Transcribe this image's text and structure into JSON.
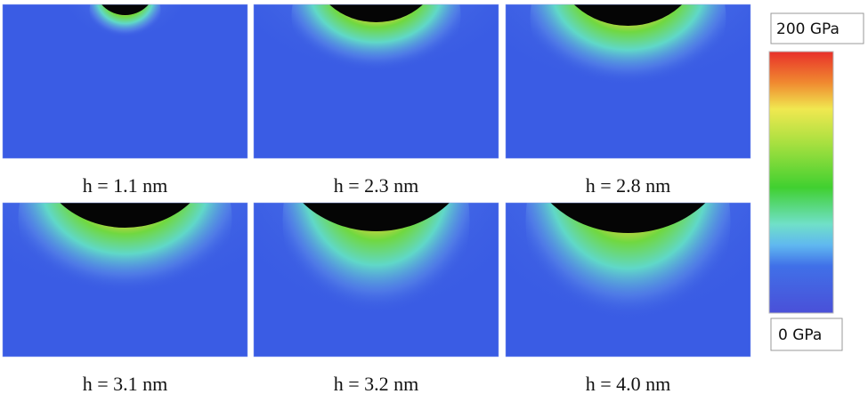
{
  "panels": [
    {
      "caption": "h = 1.1 nm"
    },
    {
      "caption": "h = 2.3 nm"
    },
    {
      "caption": "h = 2.8 nm"
    },
    {
      "caption": "h = 3.1 nm"
    },
    {
      "caption": "h = 3.2 nm"
    },
    {
      "caption": "h = 4.0 nm"
    }
  ],
  "colorbar": {
    "max_label": "200 GPa",
    "min_label": "0 GPa"
  }
}
